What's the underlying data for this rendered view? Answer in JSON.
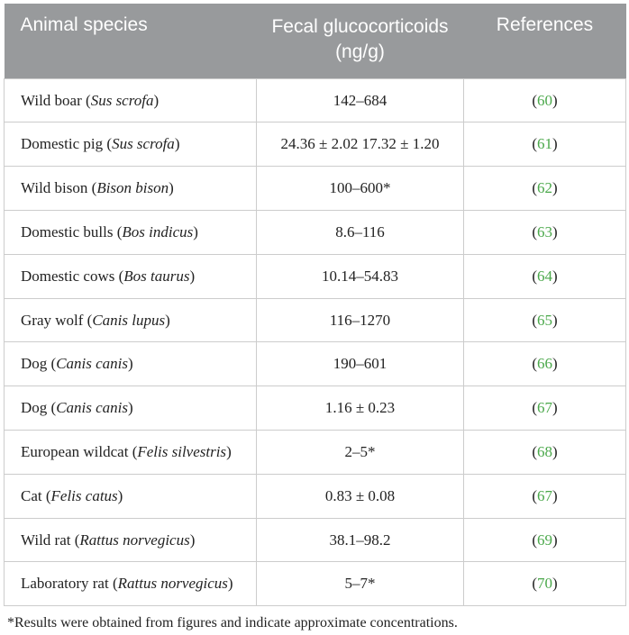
{
  "columns": [
    "Animal species",
    "Fecal glucocorticoids (ng/g)",
    "References"
  ],
  "header_bg": "#989a9c",
  "header_color": "#ffffff",
  "border_color": "#cccccc",
  "ref_color": "#4aa84a",
  "rows": [
    {
      "common": "Wild boar",
      "sci": "Sus scrofa",
      "value": "142–684",
      "ref": "60"
    },
    {
      "common": "Domestic pig",
      "sci": "Sus scrofa",
      "value": "24.36 ± 2.02 17.32 ± 1.20",
      "ref": "61"
    },
    {
      "common": "Wild bison",
      "sci": "Bison bison",
      "value": "100–600*",
      "ref": "62"
    },
    {
      "common": "Domestic bulls",
      "sci": "Bos indicus",
      "value": "8.6–116",
      "ref": "63"
    },
    {
      "common": "Domestic cows",
      "sci": "Bos taurus",
      "value": "10.14–54.83",
      "ref": "64"
    },
    {
      "common": "Gray wolf",
      "sci": "Canis lupus",
      "value": "116–1270",
      "ref": "65"
    },
    {
      "common": "Dog",
      "sci": "Canis canis",
      "value": "190–601",
      "ref": "66"
    },
    {
      "common": "Dog",
      "sci": "Canis canis",
      "value": "1.16 ± 0.23",
      "ref": "67"
    },
    {
      "common": "European wildcat",
      "sci": "Felis silvestris",
      "value": "2–5*",
      "ref": "68"
    },
    {
      "common": "Cat",
      "sci": "Felis catus",
      "value": "0.83 ± 0.08",
      "ref": "67"
    },
    {
      "common": "Wild rat",
      "sci": "Rattus norvegicus",
      "value": "38.1–98.2",
      "ref": "69"
    },
    {
      "common": "Laboratory rat",
      "sci": "Rattus norvegicus",
      "value": "5–7*",
      "ref": "70"
    }
  ],
  "footnote": "*Results were obtained from figures and indicate approximate concentrations."
}
